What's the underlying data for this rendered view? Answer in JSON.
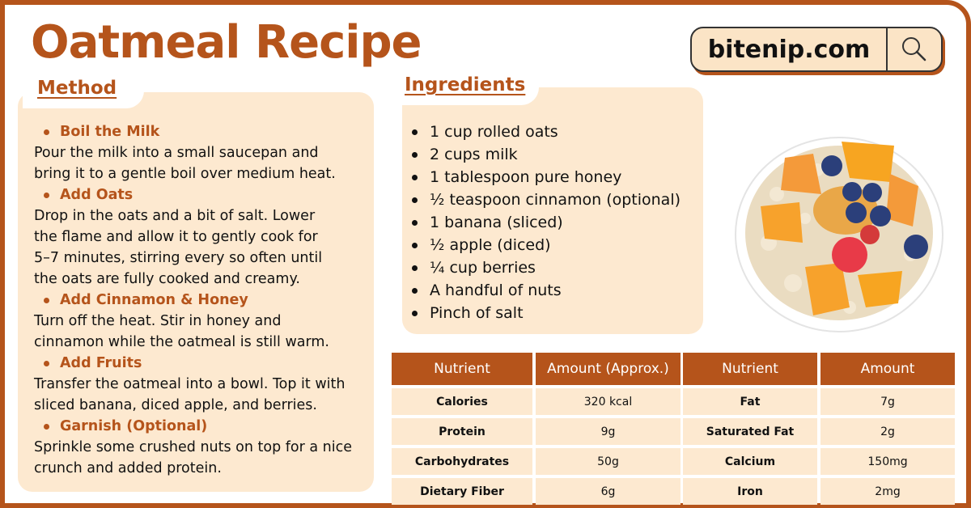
{
  "title": "Oatmeal Recipe",
  "site": {
    "name": "bitenip.com",
    "icon": "search-icon"
  },
  "method": {
    "heading": "Method",
    "steps": [
      {
        "title": "Boil the Milk",
        "text": "Pour the milk into a small saucepan and\n bring it to a gentle boil over medium heat."
      },
      {
        "title": "Add Oats",
        "text": "Drop in the oats and a bit of salt. Lower\n the flame and allow it to gently cook for\n 5–7 minutes, stirring every so often until\nthe oats are fully cooked and creamy."
      },
      {
        "title": "Add Cinnamon & Honey",
        "text": "Turn off the heat. Stir in honey and\n cinnamon while the oatmeal is still warm."
      },
      {
        "title": "Add Fruits",
        "text": "Transfer the oatmeal into a bowl. Top it with\n sliced banana, diced apple, and berries."
      },
      {
        "title": "Garnish (Optional)",
        "text": "Sprinkle some crushed nuts on top for a nice\n crunch and added protein."
      }
    ]
  },
  "ingredients": {
    "heading": "Ingredients",
    "items": [
      "1 cup rolled oats",
      "2 cups milk",
      "1 tablespoon pure honey",
      "½ teaspoon cinnamon (optional)",
      "1 banana (sliced)",
      "½ apple (diced)",
      "¼ cup berries",
      "A handful of nuts",
      "Pinch of salt"
    ]
  },
  "nutrition_left": {
    "headers": [
      "Nutrient",
      "Amount (Approx.)"
    ],
    "rows": [
      [
        "Calories",
        "320 kcal"
      ],
      [
        "Protein",
        "9g"
      ],
      [
        "Carbohydrates",
        "50g"
      ],
      [
        "Dietary Fiber",
        "6g"
      ]
    ]
  },
  "nutrition_right": {
    "headers": [
      "Nutrient",
      "Amount"
    ],
    "rows": [
      [
        "Fat",
        "7g"
      ],
      [
        "Saturated Fat",
        "2g"
      ],
      [
        "Calcium",
        "150mg"
      ],
      [
        "Iron",
        "2mg"
      ]
    ]
  },
  "colors": {
    "accent": "#b5541b",
    "panel": "#fde9d0",
    "badge": "#fbe4c6"
  }
}
